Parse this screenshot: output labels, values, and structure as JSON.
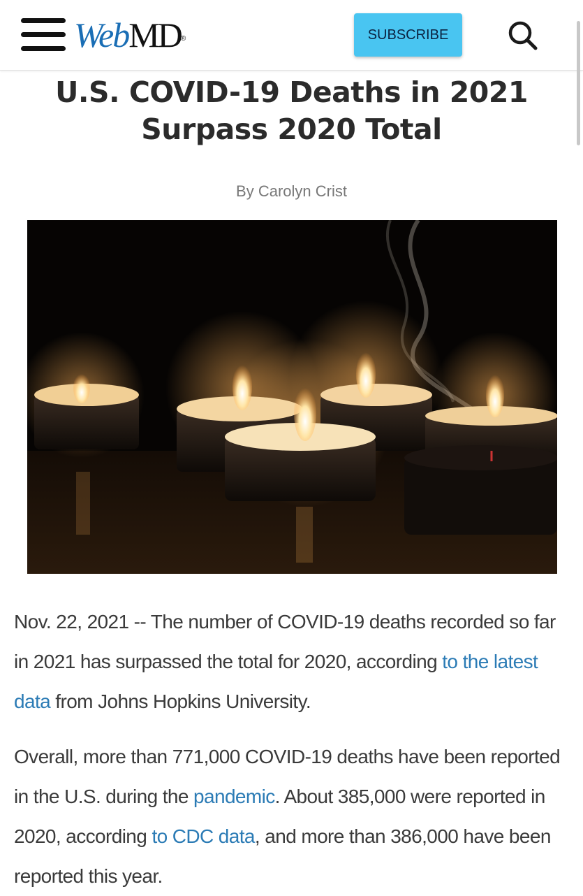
{
  "header": {
    "logo": {
      "web": "Web",
      "md": "MD",
      "reg": "®"
    },
    "subscribe_label": "SUBSCRIBE"
  },
  "icons": {
    "menu": "hamburger-menu-icon",
    "search": "search-icon"
  },
  "colors": {
    "brand_blue": "#1a6eb5",
    "subscribe_bg": "#49c5f1",
    "link": "#2b7bb5",
    "title": "#2b2b2b"
  },
  "article": {
    "title": "U.S. COVID-19 Deaths in 2021 Surpass 2020 Total",
    "byline": "By Carolyn Crist",
    "p1": {
      "t1": "Nov. 22, 2021 -- The number of COVID-19 deaths recorded so far in 2021 has surpassed the total for 2020, according ",
      "link1": "to the latest data",
      "t2": " from Johns Hopkins University."
    },
    "p2": {
      "t1": "Overall, more than 771,000 COVID-19 deaths have been reported in the U.S. during the ",
      "link1": "pandemic",
      "t2": ". About 385,000 were reported in 2020, according ",
      "link2": "to CDC data",
      "t3": ", and more than 386,000 have been reported this year."
    }
  }
}
